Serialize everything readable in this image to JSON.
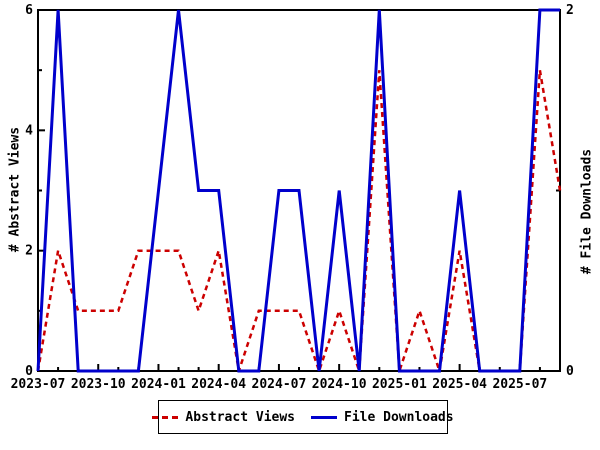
{
  "chart_data": {
    "type": "line",
    "title": "",
    "x": [
      "2023-07",
      "2023-08",
      "2023-09",
      "2023-10",
      "2023-11",
      "2023-12",
      "2024-01",
      "2024-02",
      "2024-03",
      "2024-04",
      "2024-05",
      "2024-06",
      "2024-07",
      "2024-08",
      "2024-09",
      "2024-10",
      "2024-11",
      "2024-12",
      "2025-01",
      "2025-02",
      "2025-03",
      "2025-04",
      "2025-05",
      "2025-06",
      "2025-07",
      "2025-08",
      "2025-09"
    ],
    "x_tick_labels": [
      "2023-07",
      "2023-10",
      "2024-01",
      "2024-04",
      "2024-07",
      "2024-10",
      "2025-01",
      "2025-04",
      "2025-07"
    ],
    "series": [
      {
        "name": "Abstract Views",
        "axis": "left",
        "color": "#cc0000",
        "line_style": "dashed",
        "values": [
          0,
          2,
          1,
          1,
          1,
          2,
          2,
          2,
          1,
          2,
          0,
          1,
          1,
          1,
          0,
          1,
          0,
          5,
          0,
          1,
          0,
          2,
          0,
          0,
          0,
          5,
          3
        ]
      },
      {
        "name": "File Downloads",
        "axis": "right",
        "color": "#0000cc",
        "line_style": "solid",
        "values": [
          0,
          2,
          0,
          0,
          0,
          0,
          1,
          2,
          1,
          1,
          0,
          0,
          1,
          1,
          0,
          1,
          0,
          2,
          0,
          0,
          0,
          1,
          0,
          0,
          0,
          2,
          2
        ]
      }
    ],
    "left_axis": {
      "label": "# Abstract Views",
      "lim": [
        0,
        6
      ],
      "tick_values": [
        0,
        2,
        4,
        6
      ],
      "minor_tick_values": [
        1,
        3,
        5
      ]
    },
    "right_axis": {
      "label": "# File Downloads",
      "lim": [
        0,
        2
      ],
      "tick_values": [
        0,
        2
      ],
      "minor_tick_values": [
        1
      ]
    },
    "legend": {
      "position": "bottom-center",
      "entries": [
        "Abstract Views",
        "File Downloads"
      ]
    },
    "grid": false,
    "axis_color": "#000000",
    "background": "#ffffff"
  }
}
